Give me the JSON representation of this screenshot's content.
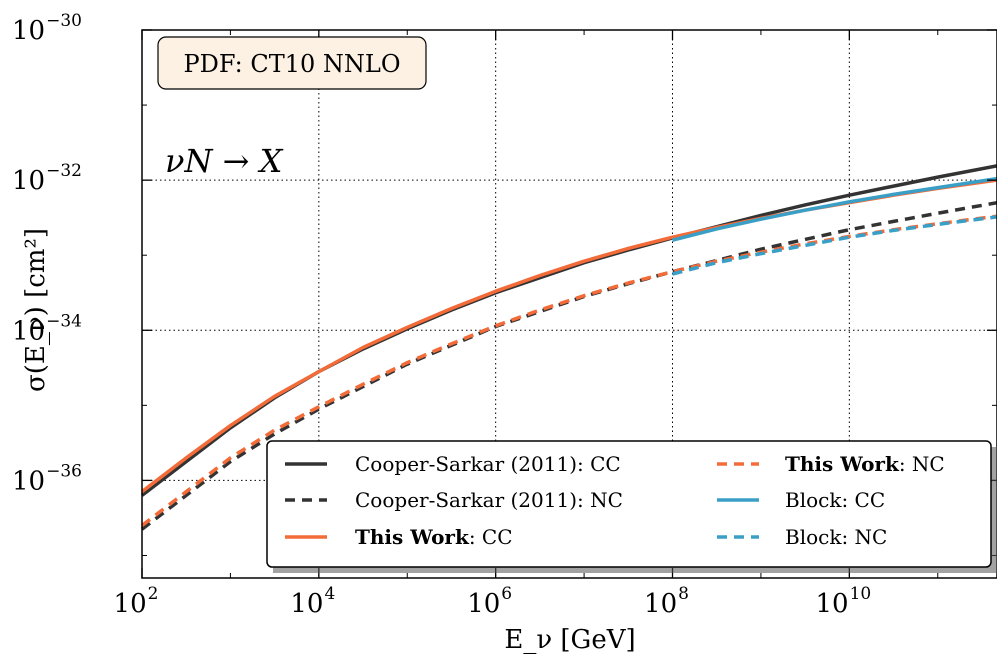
{
  "chart_data": {
    "type": "line",
    "xlabel": "E_ν [GeV]",
    "ylabel": "σ(E_ν) [cm²]",
    "x_scale": "log",
    "y_scale": "log",
    "xlim_log10": [
      2,
      11.67
    ],
    "ylim_log10": [
      -37.3,
      -30
    ],
    "grid": true,
    "x_ticks": [
      {
        "base": "10",
        "exp": "2",
        "value_log10": 2
      },
      {
        "base": "10",
        "exp": "4",
        "value_log10": 4
      },
      {
        "base": "10",
        "exp": "6",
        "value_log10": 6
      },
      {
        "base": "10",
        "exp": "8",
        "value_log10": 8
      },
      {
        "base": "10",
        "exp": "10",
        "value_log10": 10
      }
    ],
    "y_ticks": [
      {
        "base": "10",
        "exp": "−30",
        "value_log10": -30
      },
      {
        "base": "10",
        "exp": "−32",
        "value_log10": -32
      },
      {
        "base": "10",
        "exp": "−34",
        "value_log10": -34
      },
      {
        "base": "10",
        "exp": "−36",
        "value_log10": -36
      }
    ],
    "annotations": {
      "pdf_box": "PDF: CT10 NNLO",
      "process": "νN → X"
    },
    "legend_position": "lower-right",
    "series": [
      {
        "name_plain": "Cooper-Sarkar (2011): CC",
        "color": "#333333",
        "dash": "solid",
        "log10_x": [
          2,
          2.5,
          3,
          3.5,
          4,
          4.5,
          5,
          5.5,
          6,
          6.5,
          7,
          7.5,
          8,
          8.5,
          9,
          9.5,
          10,
          10.5,
          11,
          11.67
        ],
        "log10_y": [
          -36.2,
          -35.75,
          -35.3,
          -34.9,
          -34.55,
          -34.25,
          -33.98,
          -33.73,
          -33.5,
          -33.3,
          -33.1,
          -32.93,
          -32.77,
          -32.62,
          -32.47,
          -32.33,
          -32.2,
          -32.08,
          -31.96,
          -31.81
        ]
      },
      {
        "name_plain": "Cooper-Sarkar (2011): NC",
        "color": "#333333",
        "dash": "dashed",
        "log10_x": [
          2,
          2.5,
          3,
          3.5,
          4,
          4.5,
          5,
          5.5,
          6,
          6.5,
          7,
          7.5,
          8,
          8.5,
          9,
          9.5,
          10,
          10.5,
          11,
          11.67
        ],
        "log10_y": [
          -36.65,
          -36.2,
          -35.75,
          -35.38,
          -35.05,
          -34.75,
          -34.45,
          -34.2,
          -33.95,
          -33.75,
          -33.55,
          -33.38,
          -33.22,
          -33.07,
          -32.92,
          -32.79,
          -32.66,
          -32.55,
          -32.44,
          -32.3
        ]
      },
      {
        "name_bold": "This Work",
        "name_rest": ": CC",
        "color": "#f26b38",
        "dash": "solid",
        "log10_x": [
          2,
          2.5,
          3,
          3.5,
          4,
          4.5,
          5,
          5.5,
          6,
          6.5,
          7,
          7.5,
          8,
          8.5,
          9,
          9.5,
          10,
          10.5,
          11,
          11.67
        ],
        "log10_y": [
          -36.15,
          -35.7,
          -35.27,
          -34.88,
          -34.55,
          -34.23,
          -33.96,
          -33.71,
          -33.48,
          -33.27,
          -33.08,
          -32.91,
          -32.76,
          -32.63,
          -32.51,
          -32.4,
          -32.3,
          -32.2,
          -32.11,
          -32.0
        ]
      },
      {
        "name_bold": "This Work",
        "name_rest": ": NC",
        "color": "#f26b38",
        "dash": "dashed",
        "log10_x": [
          2,
          2.5,
          3,
          3.5,
          4,
          4.5,
          5,
          5.5,
          6,
          6.5,
          7,
          7.5,
          8,
          8.5,
          9,
          9.5,
          10,
          10.5,
          11,
          11.67
        ],
        "log10_y": [
          -36.6,
          -36.15,
          -35.7,
          -35.33,
          -35.02,
          -34.72,
          -34.43,
          -34.18,
          -33.94,
          -33.73,
          -33.54,
          -33.37,
          -33.22,
          -33.08,
          -32.96,
          -32.85,
          -32.75,
          -32.66,
          -32.58,
          -32.48
        ]
      },
      {
        "name_plain": "Block: CC",
        "color": "#3a9fc6",
        "dash": "solid",
        "log10_x": [
          8,
          8.5,
          9,
          9.5,
          10,
          10.5,
          11,
          11.67
        ],
        "log10_y": [
          -32.8,
          -32.65,
          -32.52,
          -32.4,
          -32.29,
          -32.19,
          -32.1,
          -31.98
        ]
      },
      {
        "name_plain": "Block: NC",
        "color": "#3a9fc6",
        "dash": "dashed",
        "log10_x": [
          8,
          8.5,
          9,
          9.5,
          10,
          10.5,
          11,
          11.67
        ],
        "log10_y": [
          -33.25,
          -33.1,
          -32.98,
          -32.87,
          -32.76,
          -32.67,
          -32.59,
          -32.49
        ]
      }
    ]
  }
}
